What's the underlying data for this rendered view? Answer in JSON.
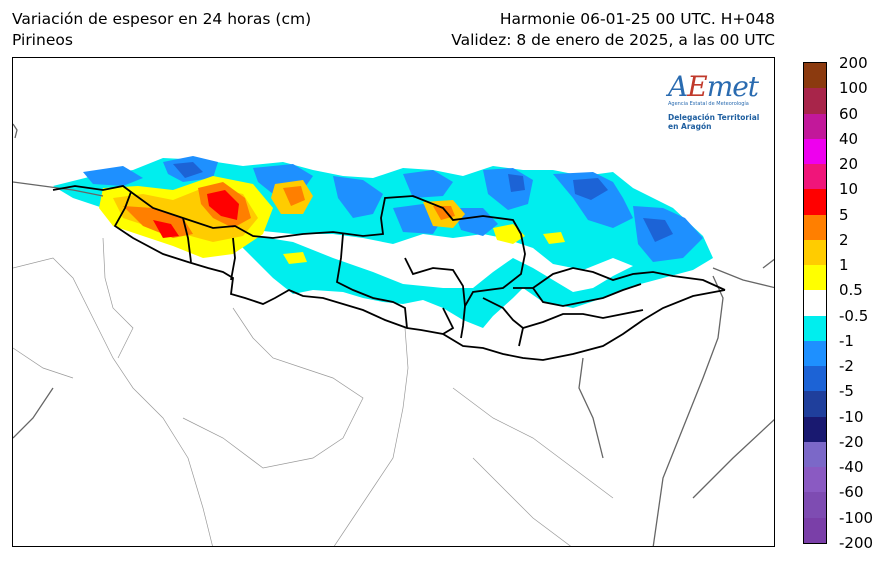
{
  "header": {
    "left_line1": "Variación de espesor en 24 horas (cm)",
    "left_line2": "Pirineos",
    "right_line1": "Harmonie 06-01-25 00 UTC. H+048",
    "right_line2": "Validez: 8 de enero de 2025, a las 00 UTC"
  },
  "logo": {
    "brand": "AEmet",
    "agency": "Agencia Estatal de Meteorología",
    "delegation_line1": "Delegación Territorial",
    "delegation_line2": "en Aragón"
  },
  "colorbar": {
    "labels": [
      "200",
      "100",
      "60",
      "40",
      "20",
      "10",
      "5",
      "2",
      "1",
      "0.5",
      "-0.5",
      "-1",
      "-2",
      "-5",
      "-10",
      "-20",
      "-40",
      "-60",
      "-100",
      "-200"
    ],
    "colors": [
      "#8b3a0f",
      "#a8254a",
      "#c2189a",
      "#ee00ee",
      "#f0157a",
      "#ff0000",
      "#ff7f00",
      "#ffcc00",
      "#ffff00",
      "#ffffff",
      "#00eeee",
      "#1e90ff",
      "#1c63d6",
      "#1f3f9c",
      "#191970",
      "#7b68c8",
      "#8a5ac2",
      "#7e4cb2",
      "#7a3fa8"
    ]
  },
  "colors": {
    "increase_small": "#ffff00",
    "increase_mid": "#ffcc00",
    "increase_high": "#ff7f00",
    "increase_max": "#ff0000",
    "decrease_small": "#00eeee",
    "decrease_mid": "#1e90ff",
    "decrease_high": "#1c63d6"
  }
}
